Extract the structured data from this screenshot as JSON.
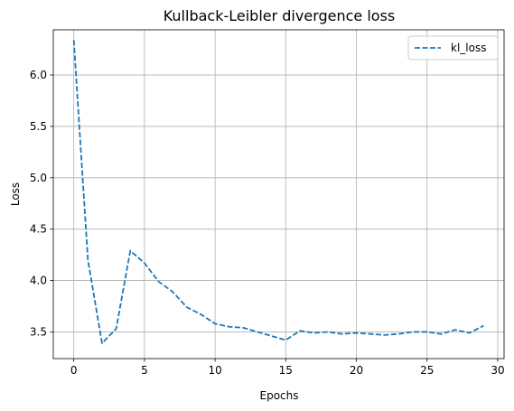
{
  "chart_data": {
    "type": "line",
    "title": "Kullback-Leibler divergence loss",
    "xlabel": "Epochs",
    "ylabel": "Loss",
    "xlim": [
      -1.45,
      30.45
    ],
    "ylim": [
      3.24,
      6.44
    ],
    "xticks": [
      0,
      5,
      10,
      15,
      20,
      25,
      30
    ],
    "xtick_labels": [
      "0",
      "5",
      "10",
      "15",
      "20",
      "25",
      "30"
    ],
    "yticks": [
      3.5,
      4.0,
      4.5,
      5.0,
      5.5,
      6.0
    ],
    "ytick_labels": [
      "3.5",
      "4.0",
      "4.5",
      "5.0",
      "5.5",
      "6.0"
    ],
    "grid": true,
    "legend_position": "top-right",
    "series": [
      {
        "name": "kl_loss",
        "color": "#1f77b4",
        "linestyle": "dashed",
        "x": [
          0,
          1,
          2,
          3,
          4,
          5,
          6,
          7,
          8,
          9,
          10,
          11,
          12,
          13,
          14,
          15,
          16,
          17,
          18,
          19,
          20,
          21,
          22,
          23,
          24,
          25,
          26,
          27,
          28,
          29
        ],
        "values": [
          6.34,
          4.2,
          3.39,
          3.53,
          4.29,
          4.17,
          3.99,
          3.89,
          3.74,
          3.67,
          3.58,
          3.55,
          3.54,
          3.5,
          3.46,
          3.42,
          3.51,
          3.49,
          3.5,
          3.48,
          3.49,
          3.48,
          3.47,
          3.48,
          3.5,
          3.5,
          3.48,
          3.52,
          3.49,
          3.56
        ]
      }
    ]
  }
}
